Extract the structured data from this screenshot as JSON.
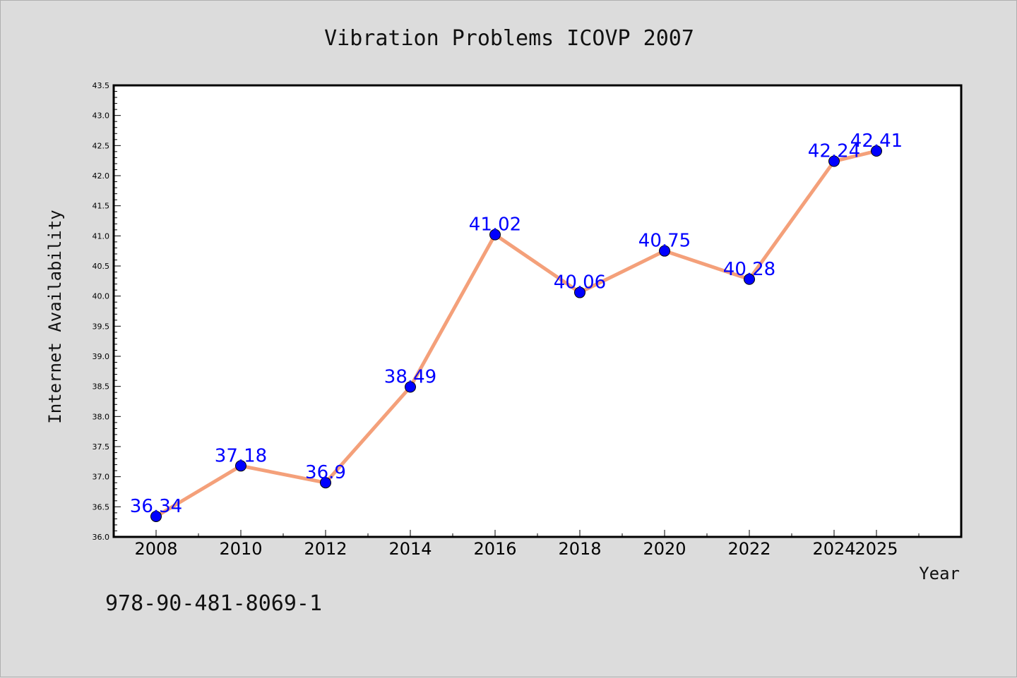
{
  "chart_data": {
    "type": "line",
    "title": "Vibration Problems ICOVP 2007",
    "xlabel": "Year",
    "ylabel": "Internet Availability",
    "categories": [
      "2008",
      "2010",
      "2012",
      "2014",
      "2016",
      "2018",
      "2020",
      "2022",
      "2024",
      "2025"
    ],
    "series": [
      {
        "values": [
          36.34,
          37.18,
          36.9,
          38.49,
          41.02,
          40.06,
          40.75,
          40.28,
          42.24,
          42.41
        ],
        "line_color": "#f4a07a",
        "marker_color": "#0000ff"
      }
    ],
    "ylim": [
      36.0,
      43.5
    ],
    "yticks": [
      "36.0",
      "36.5",
      "37.0",
      "37.5",
      "38.0",
      "38.5",
      "39.0",
      "39.5",
      "40.0",
      "40.5",
      "41.0",
      "41.5",
      "42.0",
      "42.5",
      "43.0",
      "43.5"
    ],
    "data_labels": [
      "36.34",
      "37.18",
      "36.9",
      "38.49",
      "41.02",
      "40.06",
      "40.75",
      "40.28",
      "42.24",
      "42.41"
    ],
    "grid": false,
    "legend": "none"
  },
  "footer": {
    "isbn": "978-90-481-8069-1"
  },
  "colors": {
    "background": "#dcdcdc",
    "plot_background": "#ffffff",
    "line": "#f4a07a",
    "marker": "#0000ff",
    "data_label": "#0000ff"
  }
}
